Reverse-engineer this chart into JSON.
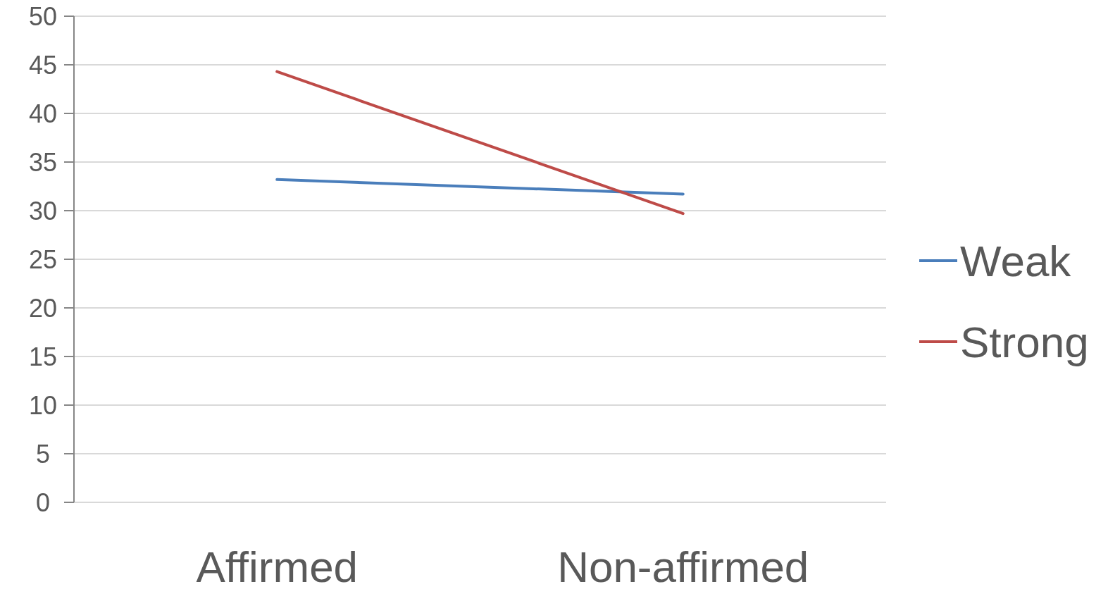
{
  "chart_data": {
    "type": "line",
    "categories": [
      "Affirmed",
      "Non-affirmed"
    ],
    "series": [
      {
        "name": "Weak",
        "color": "#4a7ebb",
        "values": [
          33.2,
          31.7
        ]
      },
      {
        "name": "Strong",
        "color": "#be4b48",
        "values": [
          44.3,
          29.7
        ]
      }
    ],
    "ylim": [
      0,
      50
    ],
    "yticks": [
      0,
      5,
      10,
      15,
      20,
      25,
      30,
      35,
      40,
      45,
      50
    ],
    "grid": "y",
    "legend": "right",
    "marker": "none",
    "line_style": "solid"
  }
}
